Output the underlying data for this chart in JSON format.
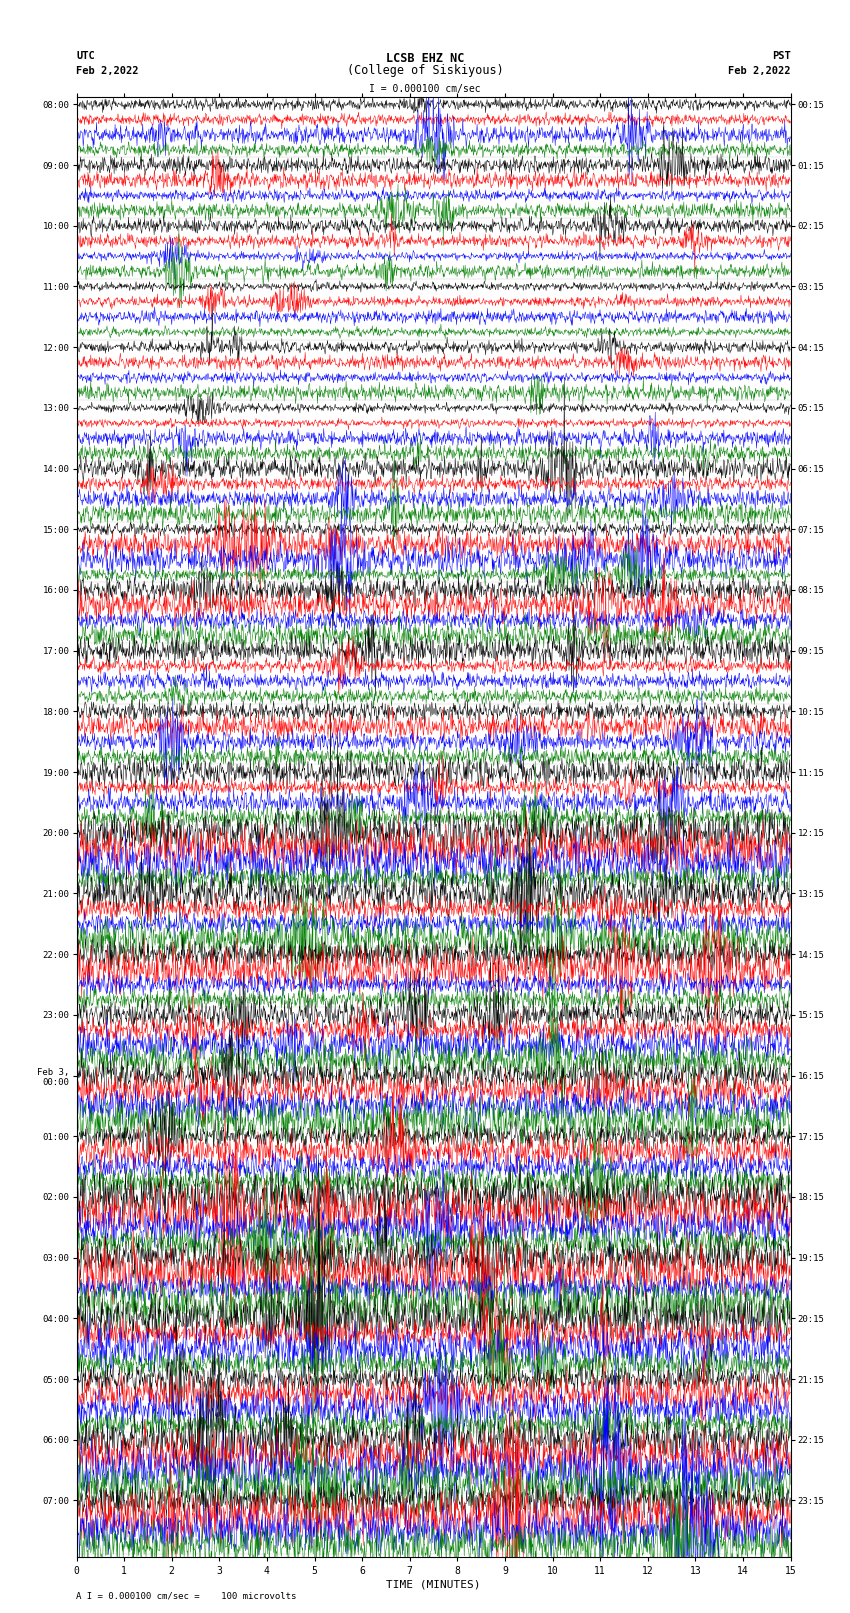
{
  "title_line1": "LCSB EHZ NC",
  "title_line2": "(College of Siskiyous)",
  "scale_text": "I = 0.000100 cm/sec",
  "utc_label": "UTC",
  "pst_label": "PST",
  "date_left": "Feb 2,2022",
  "date_right": "Feb 2,2022",
  "xlabel": "TIME (MINUTES)",
  "footer": "A I = 0.000100 cm/sec =    100 microvolts",
  "left_times": [
    "08:00",
    "09:00",
    "10:00",
    "11:00",
    "12:00",
    "13:00",
    "14:00",
    "15:00",
    "16:00",
    "17:00",
    "18:00",
    "19:00",
    "20:00",
    "21:00",
    "22:00",
    "23:00",
    "Feb 3,\n00:00",
    "01:00",
    "02:00",
    "03:00",
    "04:00",
    "05:00",
    "06:00",
    "07:00"
  ],
  "right_times": [
    "00:15",
    "01:15",
    "02:15",
    "03:15",
    "04:15",
    "05:15",
    "06:15",
    "07:15",
    "08:15",
    "09:15",
    "10:15",
    "11:15",
    "12:15",
    "13:15",
    "14:15",
    "15:15",
    "16:15",
    "17:15",
    "18:15",
    "19:15",
    "20:15",
    "21:15",
    "22:15",
    "23:15"
  ],
  "n_rows": 24,
  "traces_per_row": 4,
  "colors": [
    "black",
    "red",
    "blue",
    "green"
  ],
  "time_minutes": 15,
  "bg_color": "white",
  "figwidth": 8.5,
  "figheight": 16.13,
  "dpi": 100
}
